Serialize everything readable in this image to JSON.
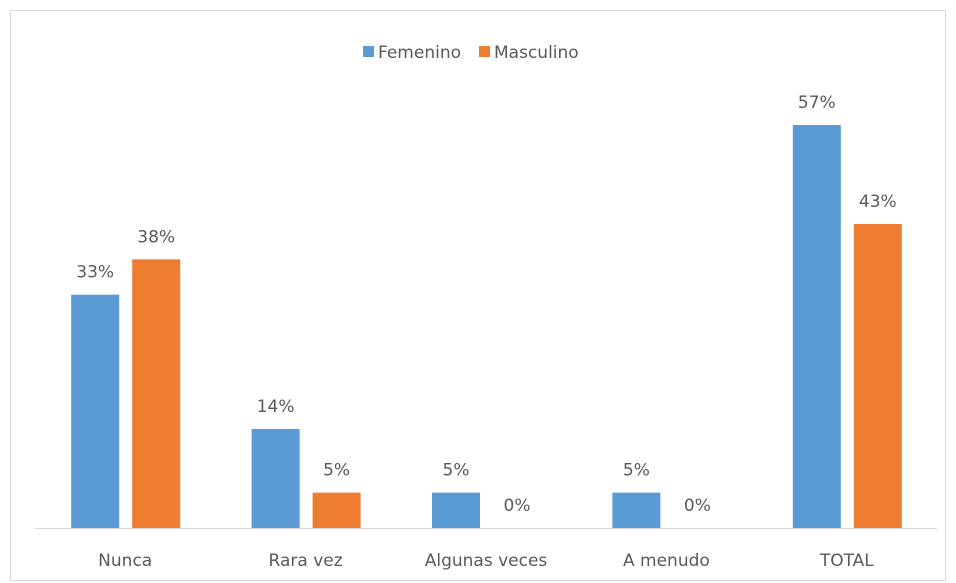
{
  "chart_data": {
    "type": "bar",
    "categories": [
      "Nunca",
      "Rara vez",
      "Algunas veces",
      "A menudo",
      "TOTAL"
    ],
    "series": [
      {
        "name": "Femenino",
        "color": "#5b9bd5",
        "values": [
          33,
          14,
          5,
          5,
          57
        ],
        "value_labels": [
          "33%",
          "14%",
          "5%",
          "5%",
          "57%"
        ]
      },
      {
        "name": "Masculino",
        "color": "#ed7d31",
        "values": [
          38,
          5,
          0,
          0,
          43
        ],
        "value_labels": [
          "38%",
          "5%",
          "0%",
          "0%",
          "43%"
        ]
      }
    ],
    "legend": "top"
  }
}
